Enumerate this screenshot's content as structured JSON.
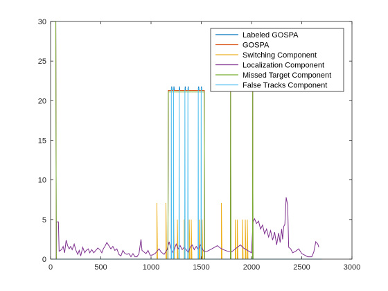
{
  "chart_data": {
    "type": "line",
    "title": "",
    "xlabel": "",
    "ylabel": "",
    "xlim": [
      0,
      3000
    ],
    "ylim": [
      0,
      30
    ],
    "xticks": [
      0,
      500,
      1000,
      1500,
      2000,
      2500,
      3000
    ],
    "yticks": [
      0,
      5,
      10,
      15,
      20,
      25,
      30
    ],
    "grid": false,
    "legend_position": "top-right",
    "series": [
      {
        "name": "Labeled GOSPA",
        "color": "#0072BD",
        "points": [
          [
            0,
            30
          ],
          [
            52,
            30
          ],
          [
            57,
            0
          ],
          [
            1168,
            0
          ],
          [
            1172,
            21.3
          ],
          [
            1204,
            21.3
          ],
          [
            1206,
            21.8
          ],
          [
            1209,
            21.3
          ],
          [
            1226,
            21.3
          ],
          [
            1228,
            21.8
          ],
          [
            1231,
            21.3
          ],
          [
            1282,
            21.3
          ],
          [
            1284,
            21.8
          ],
          [
            1287,
            21.3
          ],
          [
            1338,
            21.3
          ],
          [
            1340,
            21.8
          ],
          [
            1343,
            21.3
          ],
          [
            1368,
            21.3
          ],
          [
            1370,
            21.8
          ],
          [
            1373,
            21.3
          ],
          [
            1472,
            21.3
          ],
          [
            1474,
            21.8
          ],
          [
            1477,
            21.3
          ],
          [
            1500,
            21.3
          ],
          [
            1502,
            21.8
          ],
          [
            1505,
            21.3
          ],
          [
            1530,
            21.3
          ],
          [
            1533,
            0
          ],
          [
            1790,
            0
          ],
          [
            1792,
            21.3
          ],
          [
            1795,
            0
          ],
          [
            2010,
            0
          ],
          [
            2012,
            21.3
          ],
          [
            2015,
            0
          ],
          [
            2700,
            0
          ]
        ]
      },
      {
        "name": "GOSPA",
        "color": "#D95319",
        "points": [
          [
            0,
            30
          ],
          [
            52,
            30
          ],
          [
            57,
            0
          ],
          [
            1168,
            0
          ],
          [
            1172,
            21.3
          ],
          [
            1530,
            21.3
          ],
          [
            1533,
            0
          ],
          [
            1790,
            0
          ],
          [
            1792,
            21.3
          ],
          [
            1795,
            0
          ],
          [
            2010,
            0
          ],
          [
            2012,
            21.3
          ],
          [
            2015,
            0
          ],
          [
            2700,
            0
          ]
        ]
      },
      {
        "name": "Switching Component",
        "color": "#EDB120",
        "spikes": [
          [
            1058,
            7.1
          ],
          [
            1148,
            7.1
          ],
          [
            1225,
            5
          ],
          [
            1262,
            5
          ],
          [
            1330,
            5
          ],
          [
            1380,
            5
          ],
          [
            1400,
            5
          ],
          [
            1480,
            5
          ],
          [
            1508,
            5
          ],
          [
            1700,
            7.1
          ],
          [
            1838,
            5
          ],
          [
            1858,
            5
          ],
          [
            1910,
            5
          ],
          [
            1938,
            5
          ],
          [
            1958,
            5
          ]
        ]
      },
      {
        "name": "Localization Component",
        "color": "#7E2F8E",
        "points": [
          [
            55,
            0
          ],
          [
            58,
            4.7
          ],
          [
            78,
            4.7
          ],
          [
            85,
            1
          ],
          [
            110,
            1.2
          ],
          [
            125,
            1.6
          ],
          [
            140,
            0.8
          ],
          [
            155,
            2.4
          ],
          [
            170,
            1.7
          ],
          [
            185,
            1.3
          ],
          [
            200,
            1.6
          ],
          [
            215,
            1.2
          ],
          [
            235,
            1.9
          ],
          [
            250,
            1.2
          ],
          [
            270,
            0.6
          ],
          [
            285,
            1.1
          ],
          [
            300,
            0.4
          ],
          [
            320,
            1.5
          ],
          [
            340,
            0.8
          ],
          [
            355,
            1.1
          ],
          [
            375,
            1.3
          ],
          [
            390,
            0.8
          ],
          [
            410,
            1.2
          ],
          [
            430,
            0.8
          ],
          [
            450,
            1.1
          ],
          [
            470,
            1.4
          ],
          [
            490,
            1.2
          ],
          [
            510,
            0.8
          ],
          [
            525,
            1.3
          ],
          [
            540,
            1.6
          ],
          [
            560,
            2.1
          ],
          [
            580,
            1.7
          ],
          [
            600,
            1.3
          ],
          [
            620,
            1.6
          ],
          [
            640,
            1.1
          ],
          [
            660,
            1.3
          ],
          [
            680,
            0.6
          ],
          [
            700,
            0.4
          ],
          [
            720,
            1.1
          ],
          [
            740,
            0.7
          ],
          [
            760,
            0.6
          ],
          [
            780,
            0.7
          ],
          [
            800,
            0.3
          ],
          [
            820,
            0.7
          ],
          [
            840,
            0.3
          ],
          [
            860,
            0.3
          ],
          [
            880,
            0.7
          ],
          [
            900,
            2.5
          ],
          [
            910,
            1.1
          ],
          [
            930,
            0.9
          ],
          [
            950,
            0.7
          ],
          [
            970,
            1.1
          ],
          [
            990,
            0.5
          ],
          [
            1010,
            0.5
          ],
          [
            1040,
            0.7
          ],
          [
            1060,
            1
          ],
          [
            1080,
            1.3
          ],
          [
            1100,
            0.9
          ],
          [
            1130,
            0.6
          ],
          [
            1160,
            1.2
          ],
          [
            1180,
            2.2
          ],
          [
            1200,
            1.2
          ],
          [
            1220,
            0.8
          ],
          [
            1250,
            1.9
          ],
          [
            1270,
            1.3
          ],
          [
            1290,
            1.7
          ],
          [
            1310,
            1.2
          ],
          [
            1330,
            1.5
          ],
          [
            1350,
            1.2
          ],
          [
            1370,
            0.8
          ],
          [
            1390,
            1.5
          ],
          [
            1410,
            1.8
          ],
          [
            1430,
            1.2
          ],
          [
            1450,
            1.6
          ],
          [
            1470,
            1.2
          ],
          [
            1490,
            1.8
          ],
          [
            1510,
            1.3
          ],
          [
            1530,
            0.9
          ],
          [
            1560,
            1
          ],
          [
            1590,
            1.2
          ],
          [
            1620,
            1.4
          ],
          [
            1660,
            1.7
          ],
          [
            1690,
            1.4
          ],
          [
            1720,
            1.2
          ],
          [
            1760,
            1
          ],
          [
            1800,
            0.9
          ],
          [
            1830,
            1.2
          ],
          [
            1860,
            1.5
          ],
          [
            1890,
            1.8
          ],
          [
            1920,
            1.4
          ],
          [
            1960,
            1.1
          ],
          [
            2000,
            0.8
          ],
          [
            2015,
            4.7
          ],
          [
            2030,
            5.1
          ],
          [
            2050,
            4.5
          ],
          [
            2070,
            4.8
          ],
          [
            2090,
            3.8
          ],
          [
            2110,
            4.3
          ],
          [
            2130,
            3.2
          ],
          [
            2150,
            3.8
          ],
          [
            2170,
            2.8
          ],
          [
            2190,
            3.6
          ],
          [
            2210,
            2.4
          ],
          [
            2230,
            3.4
          ],
          [
            2250,
            1.8
          ],
          [
            2270,
            3.3
          ],
          [
            2285,
            2.1
          ],
          [
            2300,
            3.8
          ],
          [
            2310,
            2.5
          ],
          [
            2320,
            4.1
          ],
          [
            2332,
            4.4
          ],
          [
            2345,
            7.8
          ],
          [
            2360,
            6.8
          ],
          [
            2370,
            1.5
          ],
          [
            2390,
            1.3
          ],
          [
            2410,
            0.8
          ],
          [
            2440,
            1
          ],
          [
            2470,
            1.3
          ],
          [
            2500,
            0.7
          ],
          [
            2530,
            0.5
          ],
          [
            2560,
            0.3
          ],
          [
            2600,
            0.3
          ],
          [
            2620,
            0.9
          ],
          [
            2640,
            2.2
          ],
          [
            2660,
            1.9
          ],
          [
            2670,
            1.5
          ]
        ]
      },
      {
        "name": "Missed Target Component",
        "color": "#77AC30",
        "points": [
          [
            0,
            30
          ],
          [
            52,
            30
          ],
          [
            57,
            0
          ],
          [
            1168,
            0
          ],
          [
            1172,
            21.1
          ],
          [
            1530,
            21.1
          ],
          [
            1533,
            0
          ],
          [
            1790,
            0
          ],
          [
            1792,
            21.1
          ],
          [
            1795,
            0
          ],
          [
            2010,
            0
          ],
          [
            2012,
            21.1
          ],
          [
            2015,
            0
          ],
          [
            2700,
            0
          ]
        ]
      },
      {
        "name": "False Tracks Component",
        "color": "#4DBEEE",
        "points": [
          [
            0,
            0
          ],
          [
            1200,
            0
          ],
          [
            1202,
            21.6
          ],
          [
            1204,
            0
          ],
          [
            1222,
            0
          ],
          [
            1224,
            21.6
          ],
          [
            1226,
            0
          ],
          [
            1278,
            0
          ],
          [
            1280,
            21.6
          ],
          [
            1282,
            0
          ],
          [
            1335,
            0
          ],
          [
            1337,
            21.6
          ],
          [
            1339,
            0
          ],
          [
            1365,
            0
          ],
          [
            1367,
            21.6
          ],
          [
            1369,
            0
          ],
          [
            1468,
            0
          ],
          [
            1470,
            21.6
          ],
          [
            1472,
            0
          ],
          [
            1497,
            0
          ],
          [
            1499,
            21.6
          ],
          [
            1501,
            0
          ],
          [
            2700,
            0
          ]
        ]
      }
    ]
  }
}
